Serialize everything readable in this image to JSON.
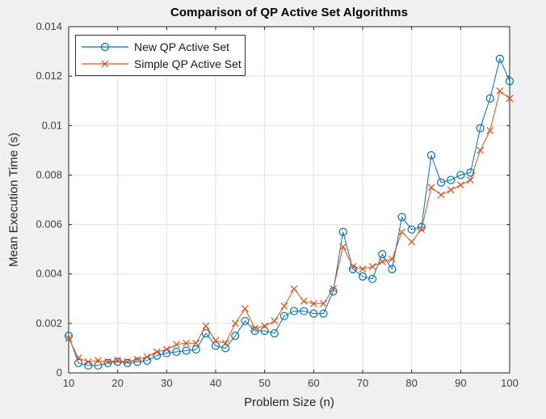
{
  "figure": {
    "title": "Comparison of QP Active Set Algorithms",
    "xlabel": "Problem Size (n)",
    "ylabel": "Mean Execution Time (s)",
    "background_color": "#f0f0f0",
    "plot_background_color": "#ffffff",
    "axis_color": "#262626",
    "grid_color": "#e2e2e2",
    "tick_label_color": "#404040"
  },
  "legend": {
    "position": "top-left",
    "entries": [
      {
        "label": "New QP Active Set",
        "color": "#0072BD",
        "marker": "circle"
      },
      {
        "label": "Simple QP Active Set",
        "color": "#D95319",
        "marker": "x"
      }
    ]
  },
  "chart_data": {
    "type": "line",
    "title": "Comparison of QP Active Set Algorithms",
    "xlabel": "Problem Size (n)",
    "ylabel": "Mean Execution Time (s)",
    "grid": true,
    "legend_position": "top-left",
    "xlim": [
      10,
      100
    ],
    "ylim": [
      0,
      0.014
    ],
    "x_ticks": [
      10,
      20,
      30,
      40,
      50,
      60,
      70,
      80,
      90,
      100
    ],
    "x_tick_labels": [
      "10",
      "20",
      "30",
      "40",
      "50",
      "60",
      "70",
      "80",
      "90",
      "100"
    ],
    "y_ticks": [
      0,
      0.002,
      0.004,
      0.006,
      0.008,
      0.01,
      0.012,
      0.014
    ],
    "y_tick_labels": [
      "0",
      "0.002",
      "0.004",
      "0.006",
      "0.008",
      "0.01",
      "0.012",
      "0.014"
    ],
    "x": [
      10,
      12,
      14,
      16,
      18,
      20,
      22,
      24,
      26,
      28,
      30,
      32,
      34,
      36,
      38,
      40,
      42,
      44,
      46,
      48,
      50,
      52,
      54,
      56,
      58,
      60,
      62,
      64,
      66,
      68,
      70,
      72,
      74,
      76,
      78,
      80,
      82,
      84,
      86,
      88,
      90,
      92,
      94,
      96,
      98,
      100
    ],
    "series": [
      {
        "name": "New QP Active Set",
        "color": "#0072BD",
        "marker": "circle",
        "values": [
          0.0015,
          0.0004,
          0.0003,
          0.0003,
          0.0004,
          0.00045,
          0.0004,
          0.00045,
          0.0005,
          0.0007,
          0.0008,
          0.00085,
          0.0009,
          0.00095,
          0.0016,
          0.0011,
          0.001,
          0.0015,
          0.0021,
          0.0017,
          0.0017,
          0.0016,
          0.0023,
          0.0025,
          0.0025,
          0.0024,
          0.0024,
          0.0033,
          0.0057,
          0.0042,
          0.0039,
          0.0038,
          0.0048,
          0.0042,
          0.0063,
          0.0058,
          0.0059,
          0.0088,
          0.0077,
          0.0078,
          0.008,
          0.0081,
          0.0099,
          0.0111,
          0.0127,
          0.0118
        ]
      },
      {
        "name": "Simple QP Active Set",
        "color": "#D95319",
        "marker": "x",
        "values": [
          0.0014,
          0.0006,
          0.00045,
          0.0005,
          0.00045,
          0.0005,
          0.00045,
          0.00055,
          0.00065,
          0.00085,
          0.00095,
          0.00115,
          0.0012,
          0.0012,
          0.0019,
          0.0013,
          0.0012,
          0.002,
          0.0026,
          0.0018,
          0.0019,
          0.0021,
          0.0027,
          0.0034,
          0.0029,
          0.0028,
          0.0028,
          0.0034,
          0.0051,
          0.0043,
          0.0042,
          0.0043,
          0.0045,
          0.0046,
          0.0057,
          0.0053,
          0.0058,
          0.0075,
          0.0072,
          0.0074,
          0.0076,
          0.0078,
          0.009,
          0.0098,
          0.0114,
          0.0111
        ]
      }
    ]
  }
}
